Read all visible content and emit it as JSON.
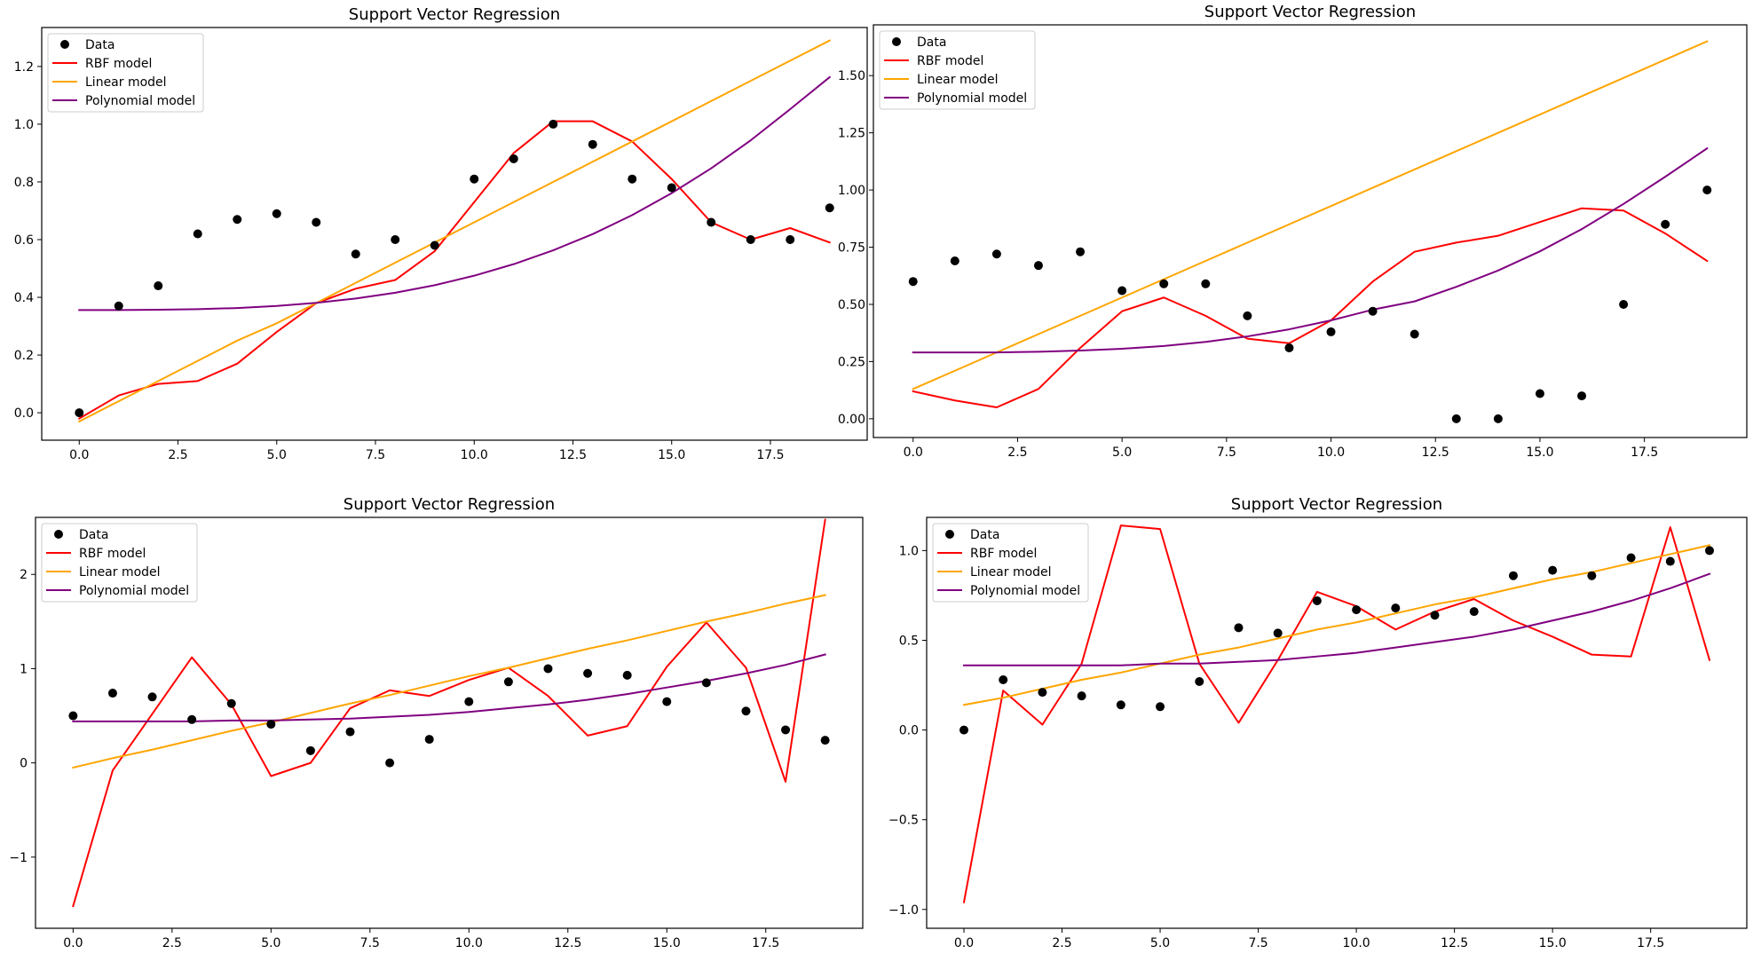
{
  "figure": {
    "legend_labels": [
      "Data",
      "RBF model",
      "Linear model",
      "Polynomial model"
    ],
    "colors": {
      "data": "#000000",
      "rbf": "#ff0000",
      "linear": "#ffa500",
      "poly": "#800080",
      "axes": "#000000",
      "legend_border": "#cccccc"
    }
  },
  "chart_data": [
    {
      "type": "scatter+line",
      "title": "Support Vector Regression",
      "xlim": [
        -0.95,
        19.95
      ],
      "ylim": [
        -0.095,
        1.335
      ],
      "xticks": [
        0.0,
        2.5,
        5.0,
        7.5,
        10.0,
        12.5,
        15.0,
        17.5
      ],
      "xtick_labels": [
        "0.0",
        "2.5",
        "5.0",
        "7.5",
        "10.0",
        "12.5",
        "15.0",
        "17.5"
      ],
      "yticks": [
        0.0,
        0.2,
        0.4,
        0.6,
        0.8,
        1.0,
        1.2
      ],
      "ytick_labels": [
        "0.0",
        "0.2",
        "0.4",
        "0.6",
        "0.8",
        "1.0",
        "1.2"
      ],
      "legend_position": "upper-left",
      "x": [
        0,
        1,
        2,
        3,
        4,
        5,
        6,
        7,
        8,
        9,
        10,
        11,
        12,
        13,
        14,
        15,
        16,
        17,
        18,
        19
      ],
      "series": [
        {
          "name": "Data",
          "kind": "scatter",
          "values": [
            0.0,
            0.37,
            0.44,
            0.62,
            0.67,
            0.69,
            0.66,
            0.55,
            0.6,
            0.58,
            0.81,
            0.88,
            1.0,
            0.93,
            0.81,
            0.78,
            0.66,
            0.6,
            0.6,
            0.71
          ]
        },
        {
          "name": "RBF model",
          "kind": "line",
          "values": [
            -0.02,
            0.06,
            0.1,
            0.11,
            0.17,
            0.28,
            0.38,
            0.43,
            0.46,
            0.56,
            0.73,
            0.9,
            1.01,
            1.01,
            0.94,
            0.81,
            0.66,
            0.6,
            0.64,
            0.59
          ]
        },
        {
          "name": "Linear model",
          "kind": "line",
          "values": [
            -0.03,
            0.04,
            0.11,
            0.18,
            0.25,
            0.31,
            0.38,
            0.45,
            0.52,
            0.59,
            0.66,
            0.73,
            0.8,
            0.87,
            0.94,
            1.01,
            1.08,
            1.15,
            1.22,
            1.29
          ]
        },
        {
          "name": "Polynomial model",
          "kind": "line",
          "values": [
            0.356,
            0.356,
            0.357,
            0.359,
            0.363,
            0.37,
            0.381,
            0.396,
            0.416,
            0.442,
            0.475,
            0.515,
            0.563,
            0.619,
            0.685,
            0.761,
            0.847,
            0.944,
            1.052,
            1.163
          ]
        }
      ]
    },
    {
      "type": "scatter+line",
      "title": "Support Vector Regression",
      "xlim": [
        -0.95,
        19.95
      ],
      "ylim": [
        -0.082,
        1.722
      ],
      "xticks": [
        0.0,
        2.5,
        5.0,
        7.5,
        10.0,
        12.5,
        15.0,
        17.5
      ],
      "xtick_labels": [
        "0.0",
        "2.5",
        "5.0",
        "7.5",
        "10.0",
        "12.5",
        "15.0",
        "17.5"
      ],
      "yticks": [
        0.0,
        0.25,
        0.5,
        0.75,
        1.0,
        1.25,
        1.5
      ],
      "ytick_labels": [
        "0.00",
        "0.25",
        "0.50",
        "0.75",
        "1.00",
        "1.25",
        "1.50"
      ],
      "legend_position": "upper-left",
      "x": [
        0,
        1,
        2,
        3,
        4,
        5,
        6,
        7,
        8,
        9,
        10,
        11,
        12,
        13,
        14,
        15,
        16,
        17,
        18,
        19
      ],
      "series": [
        {
          "name": "Data",
          "kind": "scatter",
          "values": [
            0.6,
            0.69,
            0.72,
            0.67,
            0.73,
            0.56,
            0.59,
            0.59,
            0.45,
            0.31,
            0.38,
            0.47,
            0.37,
            0.0,
            0.0,
            0.11,
            0.1,
            0.5,
            0.85,
            1.0
          ]
        },
        {
          "name": "RBF model",
          "kind": "line",
          "values": [
            0.12,
            0.08,
            0.05,
            0.13,
            0.31,
            0.47,
            0.53,
            0.45,
            0.35,
            0.33,
            0.43,
            0.6,
            0.73,
            0.77,
            0.8,
            0.86,
            0.92,
            0.91,
            0.81,
            0.69
          ]
        },
        {
          "name": "Linear model",
          "kind": "line",
          "values": [
            0.13,
            0.21,
            0.29,
            0.37,
            0.45,
            0.53,
            0.61,
            0.69,
            0.77,
            0.85,
            0.93,
            1.01,
            1.09,
            1.17,
            1.25,
            1.33,
            1.41,
            1.49,
            1.57,
            1.65
          ]
        },
        {
          "name": "Polynomial model",
          "kind": "line",
          "values": [
            0.29,
            0.29,
            0.29,
            0.293,
            0.298,
            0.306,
            0.318,
            0.336,
            0.36,
            0.391,
            0.43,
            0.477,
            0.513,
            0.577,
            0.648,
            0.732,
            0.829,
            0.939,
            1.058,
            1.182
          ]
        }
      ]
    },
    {
      "type": "scatter+line",
      "title": "Support Vector Regression",
      "xlim": [
        -0.95,
        19.95
      ],
      "ylim": [
        -1.755,
        2.605
      ],
      "xticks": [
        0.0,
        2.5,
        5.0,
        7.5,
        10.0,
        12.5,
        15.0,
        17.5
      ],
      "xtick_labels": [
        "0.0",
        "2.5",
        "5.0",
        "7.5",
        "10.0",
        "12.5",
        "15.0",
        "17.5"
      ],
      "yticks": [
        -1,
        0,
        1,
        2
      ],
      "ytick_labels": [
        "−1",
        "0",
        "1",
        "2"
      ],
      "legend_position": "upper-left",
      "x": [
        0,
        1,
        2,
        3,
        4,
        5,
        6,
        7,
        8,
        9,
        10,
        11,
        12,
        13,
        14,
        15,
        16,
        17,
        18,
        19
      ],
      "series": [
        {
          "name": "Data",
          "kind": "scatter",
          "values": [
            0.5,
            0.74,
            0.7,
            0.46,
            0.63,
            0.41,
            0.13,
            0.33,
            0.0,
            0.25,
            0.65,
            0.86,
            1.0,
            0.95,
            0.93,
            0.65,
            0.85,
            0.55,
            0.35,
            0.24
          ]
        },
        {
          "name": "RBF model",
          "kind": "line",
          "values": [
            -1.52,
            -0.08,
            0.52,
            1.12,
            0.62,
            -0.14,
            0.0,
            0.58,
            0.77,
            0.71,
            0.88,
            1.01,
            0.71,
            0.29,
            0.39,
            1.02,
            1.49,
            1.01,
            -0.2,
            2.58
          ]
        },
        {
          "name": "Linear model",
          "kind": "line",
          "values": [
            -0.05,
            0.05,
            0.14,
            0.24,
            0.34,
            0.43,
            0.53,
            0.63,
            0.72,
            0.82,
            0.92,
            1.01,
            1.11,
            1.21,
            1.3,
            1.4,
            1.5,
            1.59,
            1.69,
            1.78
          ]
        },
        {
          "name": "Polynomial model",
          "kind": "line",
          "values": [
            0.44,
            0.44,
            0.44,
            0.44,
            0.45,
            0.45,
            0.46,
            0.47,
            0.49,
            0.51,
            0.54,
            0.58,
            0.62,
            0.67,
            0.73,
            0.8,
            0.87,
            0.95,
            1.04,
            1.15
          ]
        }
      ]
    },
    {
      "type": "scatter+line",
      "title": "Support Vector Regression",
      "xlim": [
        -0.95,
        19.95
      ],
      "ylim": [
        -1.105,
        1.185
      ],
      "xticks": [
        0.0,
        2.5,
        5.0,
        7.5,
        10.0,
        12.5,
        15.0,
        17.5
      ],
      "xtick_labels": [
        "0.0",
        "2.5",
        "5.0",
        "7.5",
        "10.0",
        "12.5",
        "15.0",
        "17.5"
      ],
      "yticks": [
        -1.0,
        -0.5,
        0.0,
        0.5,
        1.0
      ],
      "ytick_labels": [
        "−1.0",
        "−0.5",
        "0.0",
        "0.5",
        "1.0"
      ],
      "legend_position": "upper-left",
      "x": [
        0,
        1,
        2,
        3,
        4,
        5,
        6,
        7,
        8,
        9,
        10,
        11,
        12,
        13,
        14,
        15,
        16,
        17,
        18,
        19
      ],
      "series": [
        {
          "name": "Data",
          "kind": "scatter",
          "values": [
            0.0,
            0.28,
            0.21,
            0.19,
            0.14,
            0.13,
            0.27,
            0.57,
            0.54,
            0.72,
            0.67,
            0.68,
            0.64,
            0.66,
            0.86,
            0.89,
            0.86,
            0.96,
            0.94,
            1.0
          ]
        },
        {
          "name": "RBF model",
          "kind": "line",
          "values": [
            -0.96,
            0.22,
            0.03,
            0.37,
            1.14,
            1.12,
            0.37,
            0.04,
            0.39,
            0.77,
            0.69,
            0.56,
            0.66,
            0.73,
            0.61,
            0.52,
            0.42,
            0.41,
            1.13,
            0.39
          ]
        },
        {
          "name": "Linear model",
          "kind": "line",
          "values": [
            0.14,
            0.18,
            0.23,
            0.28,
            0.32,
            0.37,
            0.42,
            0.46,
            0.51,
            0.56,
            0.6,
            0.65,
            0.7,
            0.74,
            0.79,
            0.84,
            0.88,
            0.93,
            0.98,
            1.03
          ]
        },
        {
          "name": "Polynomial model",
          "kind": "line",
          "values": [
            0.36,
            0.36,
            0.36,
            0.36,
            0.36,
            0.37,
            0.37,
            0.38,
            0.39,
            0.41,
            0.43,
            0.46,
            0.49,
            0.52,
            0.56,
            0.61,
            0.66,
            0.72,
            0.79,
            0.87
          ]
        }
      ]
    }
  ]
}
